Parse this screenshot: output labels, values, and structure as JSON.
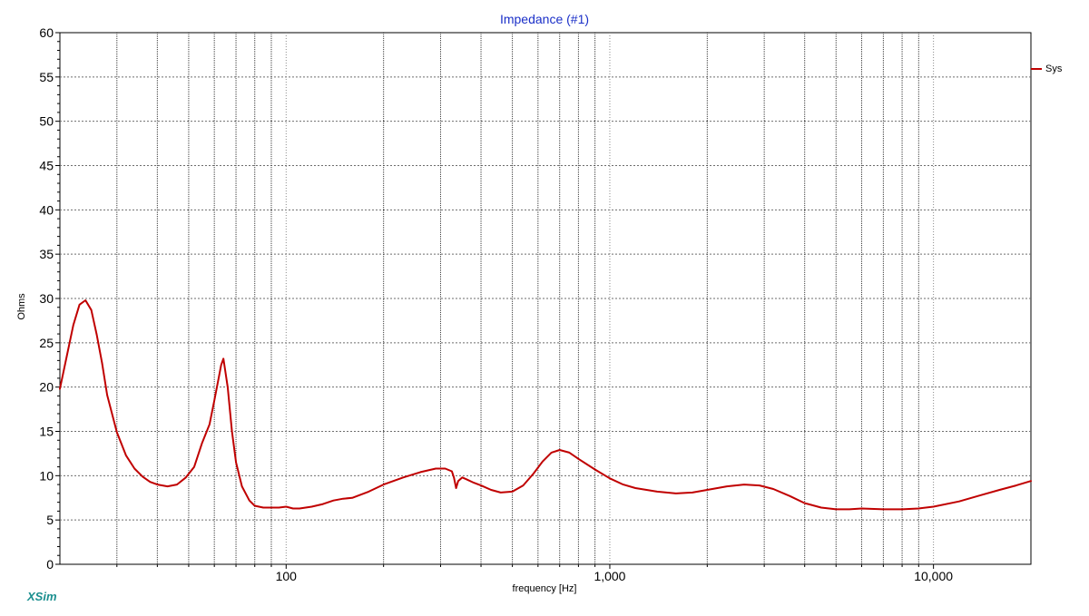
{
  "chart_data": {
    "type": "line",
    "title": "Impedance (#1)",
    "xlabel": "frequency [Hz]",
    "ylabel": "Ohms",
    "x_scale": "log",
    "xlim": [
      20,
      20000
    ],
    "ylim": [
      0,
      60
    ],
    "y_ticks": [
      0,
      5,
      10,
      15,
      20,
      25,
      30,
      35,
      40,
      45,
      50,
      55,
      60
    ],
    "x_tick_labels": [
      {
        "value": 100,
        "label": "100"
      },
      {
        "value": 1000,
        "label": "1,000"
      },
      {
        "value": 10000,
        "label": "10,000"
      }
    ],
    "grid": true,
    "legend_position": "right",
    "series": [
      {
        "name": "Sys",
        "color": "#c00000",
        "x": [
          20,
          21,
          22,
          23,
          24,
          25,
          26,
          27,
          28,
          30,
          32,
          34,
          36,
          38,
          40,
          43,
          46,
          49,
          52,
          55,
          58,
          60,
          62,
          63,
          64,
          66,
          68,
          70,
          73,
          77,
          80,
          85,
          90,
          95,
          100,
          105,
          110,
          120,
          130,
          140,
          150,
          160,
          180,
          200,
          230,
          260,
          290,
          310,
          325,
          330,
          335,
          340,
          350,
          360,
          380,
          400,
          430,
          460,
          500,
          540,
          580,
          620,
          660,
          700,
          750,
          800,
          900,
          1000,
          1100,
          1200,
          1400,
          1600,
          1800,
          2000,
          2300,
          2600,
          2900,
          3200,
          3600,
          4000,
          4500,
          5000,
          5500,
          6000,
          7000,
          8000,
          9000,
          10000,
          12000,
          14000,
          16000,
          18000,
          20000
        ],
        "y": [
          19.8,
          23.5,
          27.0,
          29.3,
          29.8,
          28.7,
          25.9,
          22.7,
          19.1,
          14.9,
          12.3,
          10.8,
          9.9,
          9.3,
          9.0,
          8.8,
          9.0,
          9.8,
          11.0,
          13.7,
          15.8,
          18.5,
          21.2,
          22.5,
          23.2,
          20.0,
          15.0,
          11.5,
          8.8,
          7.2,
          6.6,
          6.4,
          6.4,
          6.4,
          6.5,
          6.3,
          6.3,
          6.5,
          6.8,
          7.2,
          7.4,
          7.5,
          8.2,
          9.0,
          9.8,
          10.4,
          10.8,
          10.8,
          10.5,
          9.8,
          8.6,
          9.4,
          9.8,
          9.6,
          9.2,
          8.9,
          8.4,
          8.1,
          8.2,
          8.9,
          10.2,
          11.6,
          12.6,
          12.9,
          12.6,
          11.9,
          10.7,
          9.7,
          9.0,
          8.6,
          8.2,
          8.0,
          8.1,
          8.4,
          8.8,
          9.0,
          8.9,
          8.5,
          7.7,
          6.9,
          6.4,
          6.2,
          6.2,
          6.3,
          6.2,
          6.2,
          6.3,
          6.5,
          7.1,
          7.8,
          8.4,
          8.9,
          9.4
        ]
      }
    ]
  },
  "branding": {
    "app": "XSim"
  }
}
